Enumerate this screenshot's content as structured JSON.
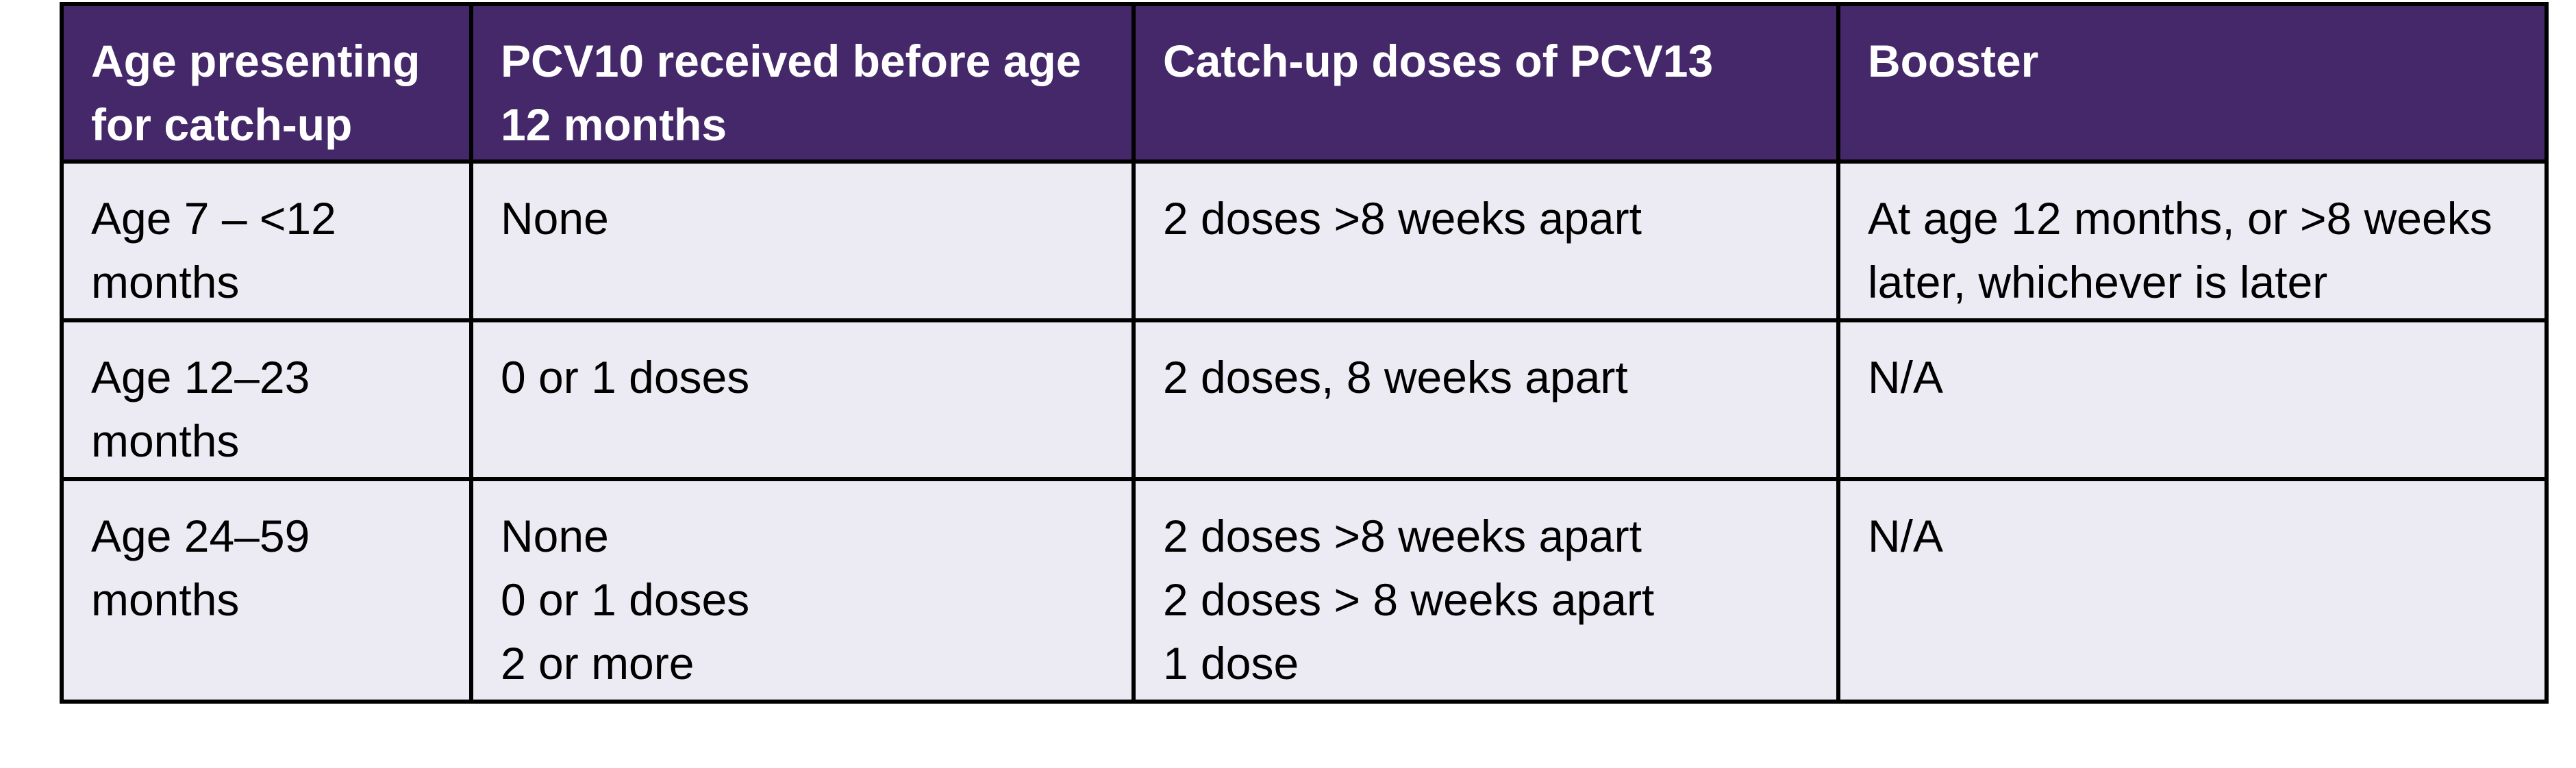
{
  "colors": {
    "header_background": "#45286a",
    "header_text": "#ffffff",
    "body_background": "#ecebf4",
    "border": "#000000"
  },
  "table": {
    "headers": [
      "Age presenting for catch-up",
      "PCV10 received before age 12 months",
      "Catch-up doses of PCV13",
      "Booster"
    ],
    "rows": [
      {
        "age": "Age 7 – <12 months",
        "pcv10": [
          "None"
        ],
        "catchup": [
          "2 doses >8 weeks apart"
        ],
        "booster": "At age 12 months, or >8 weeks later, whichever is later"
      },
      {
        "age": "Age 12–23 months",
        "pcv10": [
          "0 or 1 doses"
        ],
        "catchup": [
          "2 doses, 8 weeks apart"
        ],
        "booster": "N/A"
      },
      {
        "age": "Age 24–59 months",
        "pcv10": [
          "None",
          "0 or 1 doses",
          "2 or more"
        ],
        "catchup": [
          "2 doses >8 weeks apart",
          "2 doses > 8 weeks apart",
          "1 dose"
        ],
        "booster": "N/A"
      }
    ]
  }
}
